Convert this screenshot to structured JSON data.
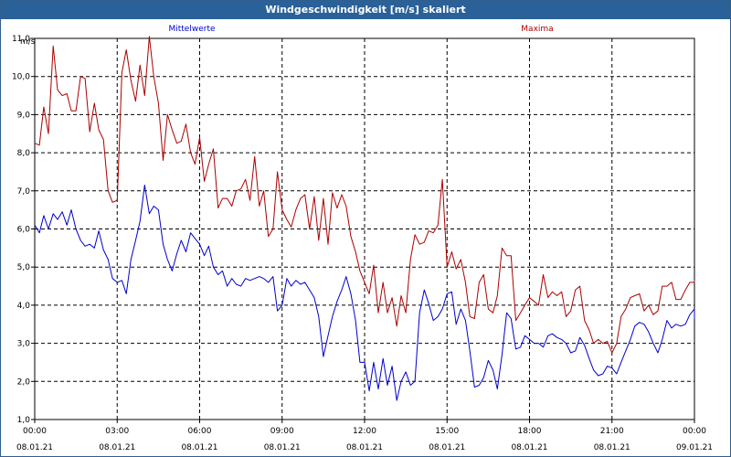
{
  "window": {
    "title": "Windgeschwindigkeit [m/s] skaliert"
  },
  "chart_data": {
    "type": "line",
    "ylabel": "m/s",
    "ylim": [
      1.0,
      11.0
    ],
    "xlim_hours": [
      0,
      24
    ],
    "grid": true,
    "y_ticks": [
      "1,0",
      "2,0",
      "3,0",
      "4,0",
      "5,0",
      "6,0",
      "7,0",
      "8,0",
      "9,0",
      "10,0",
      "11,0"
    ],
    "x_ticks": [
      {
        "time": "00:00",
        "date": "08.01.21"
      },
      {
        "time": "03:00",
        "date": "08.01.21"
      },
      {
        "time": "06:00",
        "date": "08.01.21"
      },
      {
        "time": "09:00",
        "date": "08.01.21"
      },
      {
        "time": "12:00",
        "date": "08.01.21"
      },
      {
        "time": "15:00",
        "date": "08.01.21"
      },
      {
        "time": "18:00",
        "date": "08.01.21"
      },
      {
        "time": "21:00",
        "date": "08.01.21"
      },
      {
        "time": "00:00",
        "date": "09.01.21"
      }
    ],
    "series": [
      {
        "name": "Mittelwerte",
        "color": "#0000cc",
        "legend_position": "top-left",
        "values": [
          [
            0.0,
            6.1
          ],
          [
            0.17,
            5.9
          ],
          [
            0.33,
            6.35
          ],
          [
            0.5,
            6.0
          ],
          [
            0.67,
            6.4
          ],
          [
            0.83,
            6.25
          ],
          [
            1.0,
            6.45
          ],
          [
            1.17,
            6.1
          ],
          [
            1.33,
            6.5
          ],
          [
            1.5,
            6.0
          ],
          [
            1.67,
            5.7
          ],
          [
            1.83,
            5.55
          ],
          [
            2.0,
            5.6
          ],
          [
            2.17,
            5.5
          ],
          [
            2.33,
            5.95
          ],
          [
            2.5,
            5.45
          ],
          [
            2.67,
            5.2
          ],
          [
            2.83,
            4.7
          ],
          [
            3.0,
            4.6
          ],
          [
            3.17,
            4.65
          ],
          [
            3.33,
            4.3
          ],
          [
            3.5,
            5.2
          ],
          [
            3.67,
            5.7
          ],
          [
            3.83,
            6.2
          ],
          [
            4.0,
            7.15
          ],
          [
            4.17,
            6.4
          ],
          [
            4.33,
            6.6
          ],
          [
            4.5,
            6.5
          ],
          [
            4.67,
            5.6
          ],
          [
            4.83,
            5.2
          ],
          [
            5.0,
            4.9
          ],
          [
            5.17,
            5.35
          ],
          [
            5.33,
            5.7
          ],
          [
            5.5,
            5.4
          ],
          [
            5.67,
            5.9
          ],
          [
            5.83,
            5.75
          ],
          [
            6.0,
            5.6
          ],
          [
            6.17,
            5.3
          ],
          [
            6.33,
            5.55
          ],
          [
            6.5,
            5.0
          ],
          [
            6.67,
            4.8
          ],
          [
            6.83,
            4.9
          ],
          [
            7.0,
            4.5
          ],
          [
            7.17,
            4.7
          ],
          [
            7.33,
            4.55
          ],
          [
            7.5,
            4.5
          ],
          [
            7.67,
            4.7
          ],
          [
            7.83,
            4.65
          ],
          [
            8.0,
            4.7
          ],
          [
            8.17,
            4.75
          ],
          [
            8.33,
            4.7
          ],
          [
            8.5,
            4.6
          ],
          [
            8.67,
            4.75
          ],
          [
            8.83,
            3.85
          ],
          [
            9.0,
            4.0
          ],
          [
            9.17,
            4.7
          ],
          [
            9.33,
            4.5
          ],
          [
            9.5,
            4.65
          ],
          [
            9.67,
            4.55
          ],
          [
            9.83,
            4.6
          ],
          [
            10.0,
            4.4
          ],
          [
            10.17,
            4.2
          ],
          [
            10.33,
            3.7
          ],
          [
            10.5,
            2.65
          ],
          [
            10.67,
            3.2
          ],
          [
            10.83,
            3.7
          ],
          [
            11.0,
            4.1
          ],
          [
            11.17,
            4.4
          ],
          [
            11.33,
            4.75
          ],
          [
            11.5,
            4.3
          ],
          [
            11.67,
            3.6
          ],
          [
            11.83,
            2.5
          ],
          [
            12.0,
            2.5
          ],
          [
            12.17,
            1.75
          ],
          [
            12.33,
            2.5
          ],
          [
            12.5,
            1.8
          ],
          [
            12.67,
            2.6
          ],
          [
            12.83,
            1.9
          ],
          [
            13.0,
            2.4
          ],
          [
            13.17,
            1.5
          ],
          [
            13.33,
            2.0
          ],
          [
            13.5,
            2.25
          ],
          [
            13.67,
            1.9
          ],
          [
            13.83,
            2.0
          ],
          [
            14.0,
            3.8
          ],
          [
            14.17,
            4.4
          ],
          [
            14.33,
            4.05
          ],
          [
            14.5,
            3.6
          ],
          [
            14.67,
            3.7
          ],
          [
            14.83,
            3.9
          ],
          [
            15.0,
            4.3
          ],
          [
            15.17,
            4.35
          ],
          [
            15.33,
            3.5
          ],
          [
            15.5,
            3.9
          ],
          [
            15.67,
            3.6
          ],
          [
            15.83,
            2.8
          ],
          [
            16.0,
            1.85
          ],
          [
            16.17,
            1.9
          ],
          [
            16.33,
            2.1
          ],
          [
            16.5,
            2.55
          ],
          [
            16.67,
            2.3
          ],
          [
            16.83,
            1.8
          ],
          [
            17.0,
            2.7
          ],
          [
            17.17,
            3.8
          ],
          [
            17.33,
            3.65
          ],
          [
            17.5,
            2.85
          ],
          [
            17.67,
            2.9
          ],
          [
            17.83,
            3.2
          ],
          [
            18.0,
            3.1
          ],
          [
            18.17,
            3.0
          ],
          [
            18.33,
            3.0
          ],
          [
            18.5,
            2.9
          ],
          [
            18.67,
            3.2
          ],
          [
            18.83,
            3.25
          ],
          [
            19.0,
            3.15
          ],
          [
            19.17,
            3.1
          ],
          [
            19.33,
            3.0
          ],
          [
            19.5,
            2.75
          ],
          [
            19.67,
            2.8
          ],
          [
            19.83,
            3.15
          ],
          [
            20.0,
            2.95
          ],
          [
            20.17,
            2.6
          ],
          [
            20.33,
            2.3
          ],
          [
            20.5,
            2.15
          ],
          [
            20.67,
            2.2
          ],
          [
            20.83,
            2.4
          ],
          [
            21.0,
            2.35
          ],
          [
            21.17,
            2.2
          ],
          [
            21.33,
            2.5
          ],
          [
            21.5,
            2.8
          ],
          [
            21.67,
            3.1
          ],
          [
            21.83,
            3.45
          ],
          [
            22.0,
            3.55
          ],
          [
            22.17,
            3.5
          ],
          [
            22.33,
            3.3
          ],
          [
            22.5,
            3.0
          ],
          [
            22.67,
            2.75
          ],
          [
            22.83,
            3.1
          ],
          [
            23.0,
            3.6
          ],
          [
            23.17,
            3.4
          ],
          [
            23.33,
            3.5
          ],
          [
            23.5,
            3.45
          ],
          [
            23.67,
            3.5
          ],
          [
            23.83,
            3.75
          ],
          [
            24.0,
            3.9
          ],
          [
            24.17,
            3.65
          ]
        ]
      },
      {
        "name": "Maxima",
        "color": "#aa0000",
        "legend_position": "top-right",
        "values": [
          [
            0.0,
            8.25
          ],
          [
            0.17,
            8.2
          ],
          [
            0.33,
            9.2
          ],
          [
            0.5,
            8.5
          ],
          [
            0.67,
            10.8
          ],
          [
            0.83,
            9.65
          ],
          [
            1.0,
            9.5
          ],
          [
            1.17,
            9.55
          ],
          [
            1.33,
            9.1
          ],
          [
            1.5,
            9.1
          ],
          [
            1.67,
            10.0
          ],
          [
            1.83,
            9.95
          ],
          [
            2.0,
            8.55
          ],
          [
            2.17,
            9.3
          ],
          [
            2.33,
            8.6
          ],
          [
            2.5,
            8.35
          ],
          [
            2.67,
            7.0
          ],
          [
            2.83,
            6.7
          ],
          [
            3.0,
            6.75
          ],
          [
            3.17,
            10.1
          ],
          [
            3.33,
            10.7
          ],
          [
            3.5,
            9.9
          ],
          [
            3.67,
            9.35
          ],
          [
            3.83,
            10.3
          ],
          [
            4.0,
            9.5
          ],
          [
            4.17,
            11.05
          ],
          [
            4.33,
            10.0
          ],
          [
            4.5,
            9.3
          ],
          [
            4.67,
            7.8
          ],
          [
            4.83,
            9.0
          ],
          [
            5.0,
            8.6
          ],
          [
            5.17,
            8.25
          ],
          [
            5.33,
            8.3
          ],
          [
            5.5,
            8.75
          ],
          [
            5.67,
            8.0
          ],
          [
            5.83,
            7.7
          ],
          [
            6.0,
            8.4
          ],
          [
            6.17,
            7.25
          ],
          [
            6.33,
            7.7
          ],
          [
            6.5,
            8.1
          ],
          [
            6.67,
            6.55
          ],
          [
            6.83,
            6.8
          ],
          [
            7.0,
            6.8
          ],
          [
            7.17,
            6.6
          ],
          [
            7.33,
            7.0
          ],
          [
            7.5,
            7.05
          ],
          [
            7.67,
            7.3
          ],
          [
            7.83,
            6.75
          ],
          [
            8.0,
            7.9
          ],
          [
            8.17,
            6.6
          ],
          [
            8.33,
            7.0
          ],
          [
            8.5,
            5.8
          ],
          [
            8.67,
            6.0
          ],
          [
            8.83,
            7.5
          ],
          [
            9.0,
            6.5
          ],
          [
            9.17,
            6.25
          ],
          [
            9.33,
            6.05
          ],
          [
            9.5,
            6.5
          ],
          [
            9.67,
            6.8
          ],
          [
            9.83,
            6.9
          ],
          [
            10.0,
            6.0
          ],
          [
            10.17,
            6.85
          ],
          [
            10.33,
            5.7
          ],
          [
            10.5,
            6.8
          ],
          [
            10.67,
            5.6
          ],
          [
            10.83,
            6.95
          ],
          [
            11.0,
            6.55
          ],
          [
            11.17,
            6.9
          ],
          [
            11.33,
            6.6
          ],
          [
            11.5,
            5.8
          ],
          [
            11.67,
            5.4
          ],
          [
            11.83,
            4.9
          ],
          [
            12.0,
            4.6
          ],
          [
            12.17,
            4.3
          ],
          [
            12.33,
            5.05
          ],
          [
            12.5,
            3.8
          ],
          [
            12.67,
            4.6
          ],
          [
            12.83,
            3.8
          ],
          [
            13.0,
            4.2
          ],
          [
            13.17,
            3.45
          ],
          [
            13.33,
            4.25
          ],
          [
            13.5,
            3.8
          ],
          [
            13.67,
            5.2
          ],
          [
            13.83,
            5.85
          ],
          [
            14.0,
            5.6
          ],
          [
            14.17,
            5.65
          ],
          [
            14.33,
            5.95
          ],
          [
            14.5,
            5.9
          ],
          [
            14.67,
            6.1
          ],
          [
            14.83,
            7.3
          ],
          [
            15.0,
            5.0
          ],
          [
            15.17,
            5.4
          ],
          [
            15.33,
            4.95
          ],
          [
            15.5,
            5.2
          ],
          [
            15.67,
            4.6
          ],
          [
            15.83,
            3.7
          ],
          [
            16.0,
            3.65
          ],
          [
            16.17,
            4.6
          ],
          [
            16.33,
            4.8
          ],
          [
            16.5,
            3.9
          ],
          [
            16.67,
            3.8
          ],
          [
            16.83,
            4.25
          ],
          [
            17.0,
            5.5
          ],
          [
            17.17,
            5.3
          ],
          [
            17.33,
            5.3
          ],
          [
            17.5,
            3.6
          ],
          [
            17.67,
            3.8
          ],
          [
            17.83,
            4.0
          ],
          [
            18.0,
            4.2
          ],
          [
            18.17,
            4.1
          ],
          [
            18.33,
            4.0
          ],
          [
            18.5,
            4.8
          ],
          [
            18.67,
            4.2
          ],
          [
            18.83,
            4.35
          ],
          [
            19.0,
            4.25
          ],
          [
            19.17,
            4.35
          ],
          [
            19.33,
            3.7
          ],
          [
            19.5,
            3.85
          ],
          [
            19.67,
            4.4
          ],
          [
            19.83,
            4.5
          ],
          [
            20.0,
            3.6
          ],
          [
            20.17,
            3.35
          ],
          [
            20.33,
            3.0
          ],
          [
            20.5,
            3.1
          ],
          [
            20.67,
            3.0
          ],
          [
            20.83,
            3.05
          ],
          [
            21.0,
            2.75
          ],
          [
            21.17,
            3.0
          ],
          [
            21.33,
            3.7
          ],
          [
            21.5,
            3.9
          ],
          [
            21.67,
            4.2
          ],
          [
            21.83,
            4.25
          ],
          [
            22.0,
            4.3
          ],
          [
            22.17,
            3.85
          ],
          [
            22.33,
            4.0
          ],
          [
            22.5,
            3.75
          ],
          [
            22.67,
            3.85
          ],
          [
            22.83,
            4.5
          ],
          [
            23.0,
            4.5
          ],
          [
            23.17,
            4.6
          ],
          [
            23.33,
            4.15
          ],
          [
            23.5,
            4.15
          ],
          [
            23.67,
            4.4
          ],
          [
            23.83,
            4.6
          ],
          [
            24.0,
            4.6
          ],
          [
            24.17,
            4.65
          ]
        ]
      }
    ]
  }
}
